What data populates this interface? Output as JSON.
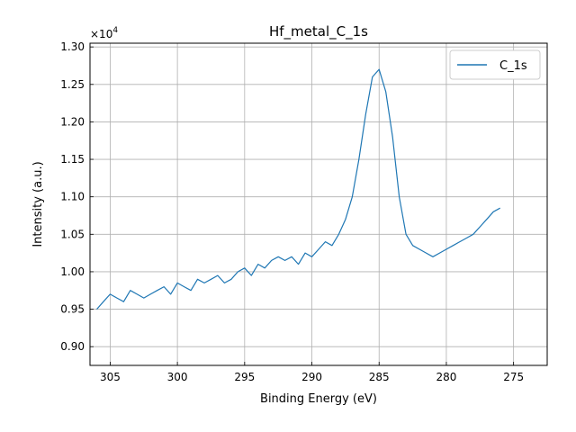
{
  "chart_data": {
    "type": "line",
    "title": "Hf_metal_C_1s",
    "xlabel": "Binding Energy (eV)",
    "ylabel": "Intensity (a.u.)",
    "xlim": [
      306.5,
      272.5
    ],
    "x_reversed": true,
    "ylim": [
      8750,
      13050
    ],
    "y_scale_label": "×10",
    "y_scale_exponent": "4",
    "grid": true,
    "legend_position": "top-right",
    "x_ticks": [
      305,
      300,
      295,
      290,
      285,
      280,
      275
    ],
    "x_tick_labels": [
      "305",
      "300",
      "295",
      "290",
      "285",
      "280",
      "275"
    ],
    "y_ticks": [
      9000,
      9500,
      10000,
      10500,
      11000,
      11500,
      12000,
      12500,
      13000
    ],
    "y_tick_labels": [
      "0.90",
      "0.95",
      "1.00",
      "1.05",
      "1.10",
      "1.15",
      "1.20",
      "1.25",
      "1.30"
    ],
    "series": [
      {
        "name": "C_1s",
        "color": "#1f77b4",
        "x": [
          306.0,
          305.5,
          305.0,
          304.5,
          304.0,
          303.5,
          303.0,
          302.5,
          302.0,
          301.5,
          301.0,
          300.5,
          300.0,
          299.5,
          299.0,
          298.5,
          298.0,
          297.5,
          297.0,
          296.5,
          296.0,
          295.5,
          295.0,
          294.5,
          294.0,
          293.5,
          293.0,
          292.5,
          292.0,
          291.5,
          291.0,
          290.5,
          290.0,
          289.5,
          289.0,
          288.5,
          288.0,
          287.5,
          287.0,
          286.5,
          286.0,
          285.5,
          285.0,
          284.5,
          284.0,
          283.5,
          283.0,
          282.5,
          282.0,
          281.5,
          281.0,
          280.5,
          280.0,
          279.5,
          279.0,
          278.5,
          278.0,
          277.5,
          277.0,
          276.5,
          276.0
        ],
        "y": [
          9500,
          9600,
          9700,
          9650,
          9600,
          9750,
          9700,
          9650,
          9700,
          9750,
          9800,
          9700,
          9850,
          9800,
          9750,
          9900,
          9850,
          9900,
          9950,
          9850,
          9900,
          10000,
          10050,
          9950,
          10100,
          10050,
          10150,
          10200,
          10150,
          10200,
          10100,
          10250,
          10200,
          10300,
          10400,
          10350,
          10500,
          10700,
          11000,
          11500,
          12100,
          12600,
          12700,
          12400,
          11800,
          11000,
          10500,
          10350,
          10300,
          10250,
          10200,
          10250,
          10300,
          10350,
          10400,
          10450,
          10500,
          10600,
          10700,
          10800,
          10850
        ]
      }
    ]
  }
}
